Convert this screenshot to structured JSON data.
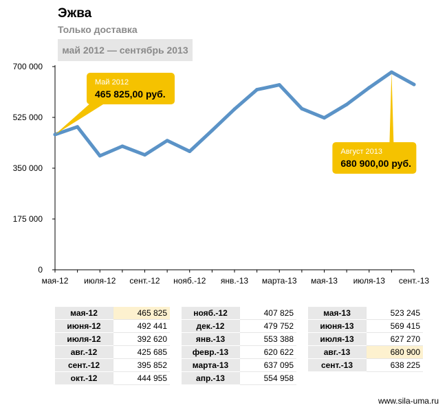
{
  "header": {
    "title": "Эжва",
    "subtitle": "Только доставка",
    "period": "май 2012 — сентябрь 2013"
  },
  "chart_data": {
    "type": "line",
    "title": "Эжва",
    "subtitle": "Только доставка",
    "x": [
      "мая-12",
      "июня-12",
      "июля-12",
      "авг.-12",
      "сент.-12",
      "окт.-12",
      "нояб.-12",
      "дек.-12",
      "янв.-13",
      "февр.-13",
      "марта-13",
      "апр.-13",
      "мая-13",
      "июня-13",
      "июля-13",
      "авг.-13",
      "сент.-13"
    ],
    "series": [
      {
        "values": [
          465825,
          492441,
          392620,
          425685,
          395852,
          444955,
          407825,
          479752,
          553388,
          620622,
          637095,
          554958,
          523245,
          569415,
          627270,
          680900,
          638225
        ]
      }
    ],
    "xtick_labels": [
      "мая-12",
      "июля-12",
      "сент.-12",
      "нояб.-12",
      "янв.-13",
      "марта-13",
      "мая-13",
      "июля-13",
      "сент.-13"
    ],
    "ytick_labels": [
      "0",
      "175 000",
      "350 000",
      "525 000",
      "700 000"
    ],
    "ylim": [
      0,
      700000
    ],
    "grid": false,
    "line_color": "#5b93c7",
    "annotations": [
      {
        "index": 0,
        "label": "Май 2012",
        "value": "465 825,00 руб."
      },
      {
        "index": 15,
        "label": "Август 2013",
        "value": "680 900,00 руб."
      }
    ],
    "callout_color": "#f5c200"
  },
  "table": {
    "columns": [
      [
        {
          "m": "мая-12",
          "v": "465 825",
          "hl": true
        },
        {
          "m": "июня-12",
          "v": "492 441",
          "hl": false
        },
        {
          "m": "июля-12",
          "v": "392 620",
          "hl": false
        },
        {
          "m": "авг.-12",
          "v": "425 685",
          "hl": false
        },
        {
          "m": "сент.-12",
          "v": "395 852",
          "hl": false
        },
        {
          "m": "окт.-12",
          "v": "444 955",
          "hl": false
        }
      ],
      [
        {
          "m": "нояб.-12",
          "v": "407 825",
          "hl": false
        },
        {
          "m": "дек.-12",
          "v": "479 752",
          "hl": false
        },
        {
          "m": "янв.-13",
          "v": "553 388",
          "hl": false
        },
        {
          "m": "февр.-13",
          "v": "620 622",
          "hl": false
        },
        {
          "m": "марта-13",
          "v": "637 095",
          "hl": false
        },
        {
          "m": "апр.-13",
          "v": "554 958",
          "hl": false
        }
      ],
      [
        {
          "m": "мая-13",
          "v": "523 245",
          "hl": false
        },
        {
          "m": "июня-13",
          "v": "569 415",
          "hl": false
        },
        {
          "m": "июля-13",
          "v": "627 270",
          "hl": false
        },
        {
          "m": "авг.-13",
          "v": "680 900",
          "hl": true
        },
        {
          "m": "сент.-13",
          "v": "638 225",
          "hl": false
        }
      ]
    ]
  },
  "footer": {
    "site": "www.sila-uma.ru"
  }
}
